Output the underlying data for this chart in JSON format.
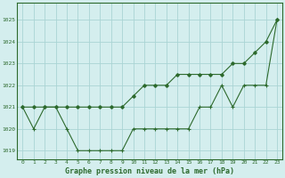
{
  "x_line1": [
    0,
    1,
    2,
    3,
    4,
    5,
    6,
    7,
    8,
    9,
    10,
    11,
    12,
    13,
    14,
    15,
    16,
    17,
    18,
    19,
    20,
    21,
    22,
    23
  ],
  "y_line1": [
    1021,
    1021,
    1021,
    1021,
    1021,
    1021,
    1021,
    1021,
    1021,
    1021,
    1021.5,
    1022,
    1022,
    1022,
    1022.5,
    1022.5,
    1022.5,
    1022.5,
    1022.5,
    1023,
    1023,
    1023.5,
    1024,
    1025
  ],
  "x_line2": [
    0,
    1,
    2,
    3,
    4,
    5,
    6,
    7,
    8,
    9,
    10,
    11,
    12,
    13,
    14,
    15,
    16,
    17,
    18,
    19,
    20,
    21,
    22,
    23
  ],
  "y_line2": [
    1021,
    1020,
    1021,
    1021,
    1020,
    1019,
    1019,
    1019,
    1019,
    1019,
    1020,
    1020,
    1020,
    1020,
    1020,
    1020,
    1021,
    1021,
    1022,
    1021,
    1022,
    1022,
    1022,
    1025
  ],
  "line_color": "#2d6a2d",
  "bg_color": "#d4eeee",
  "grid_color": "#aad4d4",
  "ylabel_ticks": [
    1019,
    1020,
    1021,
    1022,
    1023,
    1024,
    1025
  ],
  "xlabel": "Graphe pression niveau de la mer (hPa)",
  "ylim": [
    1018.6,
    1025.8
  ],
  "xlim": [
    -0.5,
    23.5
  ]
}
